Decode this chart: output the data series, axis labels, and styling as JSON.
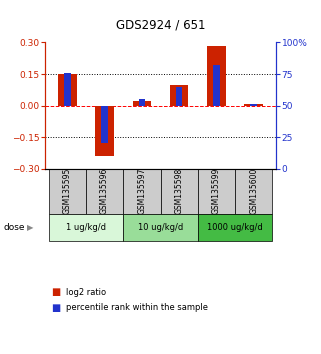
{
  "title": "GDS2924 / 651",
  "samples": [
    "GSM135595",
    "GSM135596",
    "GSM135597",
    "GSM135598",
    "GSM135599",
    "GSM135600"
  ],
  "log2_ratio": [
    0.148,
    -0.238,
    0.022,
    0.1,
    0.285,
    0.008
  ],
  "percentile_rank": [
    76,
    20,
    55,
    65,
    82,
    51
  ],
  "ylim_left": [
    -0.3,
    0.3
  ],
  "ylim_right": [
    0,
    100
  ],
  "yticks_left": [
    -0.3,
    -0.15,
    0,
    0.15,
    0.3
  ],
  "yticks_right": [
    0,
    25,
    50,
    75,
    100
  ],
  "ytick_labels_right": [
    "0",
    "25",
    "50",
    "75",
    "100%"
  ],
  "hlines": [
    -0.15,
    0.0,
    0.15
  ],
  "hline_styles": [
    "dotted",
    "dashed",
    "dotted"
  ],
  "hline_colors": [
    "black",
    "red",
    "black"
  ],
  "red_color": "#CC2200",
  "blue_color": "#2233CC",
  "dose_groups": [
    {
      "label": "1 ug/kg/d",
      "samples": [
        "GSM135595",
        "GSM135596"
      ],
      "color": "#d9f7d9"
    },
    {
      "label": "10 ug/kg/d",
      "samples": [
        "GSM135597",
        "GSM135598"
      ],
      "color": "#99dd99"
    },
    {
      "label": "1000 ug/kg/d",
      "samples": [
        "GSM135599",
        "GSM135600"
      ],
      "color": "#44bb44"
    }
  ],
  "sample_box_color": "#cccccc",
  "legend_red_label": "log2 ratio",
  "legend_blue_label": "percentile rank within the sample",
  "background_color": "#ffffff"
}
